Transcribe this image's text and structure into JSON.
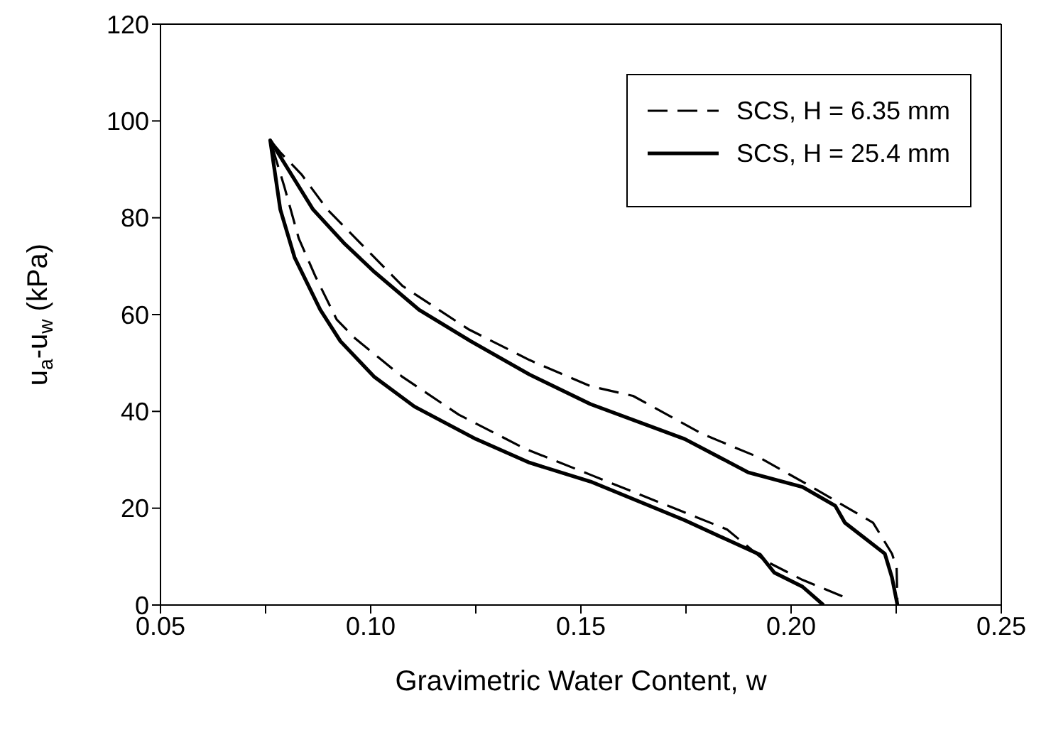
{
  "chart_data": {
    "type": "line",
    "xlabel": "Gravimetric Water Content, w",
    "ylabel": "u$_{a}$-u$_{w}$ (kPa)",
    "xlim": [
      0.05,
      0.25
    ],
    "xticks": [
      0.05,
      {
        "value": 0.075,
        "label": null
      },
      {
        "value": 0.1,
        "label": "0.10"
      },
      {
        "value": 0.125,
        "label": null
      },
      0.15,
      {
        "value": 0.175,
        "label": null
      },
      {
        "value": 0.2,
        "label": "0.20"
      },
      {
        "value": 0.225,
        "label": null
      },
      0.25
    ],
    "ylim": [
      0,
      120
    ],
    "yticks": [
      0,
      20,
      40,
      60,
      80,
      100,
      120
    ],
    "grid": false,
    "legend": "top right",
    "marker": "none",
    "series": [
      {
        "name": "SCS, H = 6.35 mm",
        "color": "#000000",
        "line_style": "dashed",
        "x": [
          0.2122,
          0.2027,
          0.1937,
          0.1848,
          0.1736,
          0.1523,
          0.1367,
          0.121,
          0.1076,
          0.0964,
          0.0919,
          0.0869,
          0.0829,
          0.0794,
          0.0761,
          0.0785,
          0.0835,
          0.0897,
          0.0975,
          0.1076,
          0.1232,
          0.1378,
          0.1523,
          0.1624,
          0.179,
          0.1926,
          0.2049,
          0.2195,
          0.224,
          0.2251,
          0.2253
        ],
        "values": [
          1.8,
          5.2,
          9.2,
          15.6,
          19.5,
          26.9,
          32.3,
          39.3,
          47.1,
          55,
          59,
          67.8,
          75.7,
          86.6,
          96,
          93.5,
          89,
          81.7,
          74.8,
          65.9,
          57,
          50.6,
          45.2,
          43.2,
          35.3,
          30.4,
          24.4,
          17,
          10.6,
          7.7,
          0
        ]
      },
      {
        "name": "SCS, H = 25.4 mm",
        "color": "#000000",
        "line_style": "solid",
        "x": [
          0.2077,
          0.2027,
          0.196,
          0.1926,
          0.1747,
          0.1523,
          0.1378,
          0.125,
          0.1104,
          0.1009,
          0.0928,
          0.088,
          0.0819,
          0.0785,
          0.0761,
          0.0863,
          0.0936,
          0.1009,
          0.1115,
          0.1238,
          0.1378,
          0.1523,
          0.1747,
          0.1898,
          0.2027,
          0.2105,
          0.2128,
          0.2223,
          0.224,
          0.2253
        ],
        "values": [
          0,
          3.8,
          6.7,
          10.4,
          17.5,
          25.5,
          29.4,
          34.3,
          41,
          47.1,
          54.5,
          61,
          71.8,
          81.7,
          96,
          81.7,
          74.8,
          68.8,
          61,
          54.5,
          47.6,
          41.5,
          34.3,
          27.4,
          24.4,
          20.5,
          17,
          10.6,
          5.7,
          0
        ]
      }
    ]
  }
}
